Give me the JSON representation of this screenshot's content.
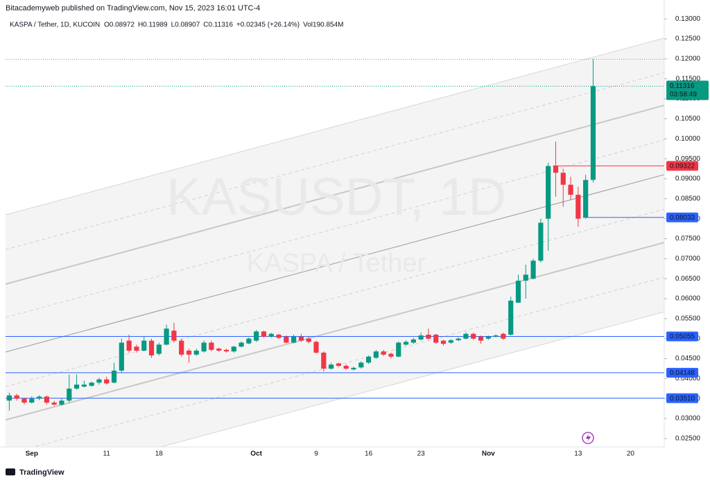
{
  "header": {
    "byline": "Bitacademyweb published on TradingView.com, Nov 15, 2023 16:01 UTC-4",
    "footer": "TradingView"
  },
  "chart_data": {
    "type": "candlestick",
    "title": "KASPA / Tether, 1D, KUCOIN",
    "legend_values": [
      "O0.08972",
      "H0.11989",
      "L0.08907",
      "C0.11316",
      "+0.02345 (+26.14%)",
      "Vol190.854M"
    ],
    "watermark": [
      "KASUSDT, 1D",
      "KASPA / Tether"
    ],
    "up_color": "#089981",
    "down_color": "#f23645",
    "categories": [
      null,
      null,
      null,
      "Sep",
      null,
      null,
      null,
      null,
      null,
      null,
      null,
      null,
      null,
      "11",
      null,
      null,
      null,
      null,
      null,
      null,
      "18",
      null,
      null,
      null,
      null,
      null,
      null,
      null,
      null,
      null,
      null,
      null,
      null,
      "Oct",
      null,
      null,
      null,
      null,
      null,
      null,
      null,
      "9",
      null,
      null,
      null,
      null,
      null,
      null,
      "16",
      null,
      null,
      null,
      null,
      null,
      null,
      "23",
      null,
      null,
      null,
      null,
      null,
      null,
      null,
      null,
      "Nov",
      null,
      null,
      null,
      null,
      null,
      null,
      null,
      null,
      null,
      null,
      null,
      "13",
      null,
      null,
      null,
      null,
      null,
      null,
      "20",
      null,
      null,
      null,
      null
    ],
    "open": [
      0.0345,
      0.0358,
      0.035,
      0.034,
      0.035,
      0.0355,
      0.034,
      0.0335,
      0.0345,
      0.0375,
      0.038,
      0.0382,
      0.039,
      0.0398,
      0.039,
      0.042,
      0.0495,
      0.048,
      0.047,
      0.0495,
      0.0462,
      0.0485,
      0.052,
      0.0495,
      0.047,
      0.046,
      0.0468,
      0.049,
      0.0475,
      0.0472,
      0.0468,
      0.048,
      0.0488,
      0.0495,
      0.0518,
      0.0505,
      0.051,
      0.0505,
      0.049,
      0.0505,
      0.05,
      0.0492,
      0.0465,
      0.0425,
      0.0438,
      0.0432,
      0.0423,
      0.0428,
      0.044,
      0.0452,
      0.0468,
      0.0462,
      0.0455,
      0.0485,
      0.049,
      0.0498,
      0.051,
      0.051,
      0.0495,
      0.049,
      0.0496,
      0.05,
      0.0512,
      0.0505,
      0.05,
      0.0505,
      0.0512,
      0.051,
      0.059,
      0.0645,
      0.065,
      0.0695,
      0.08,
      0.0932,
      0.0915,
      0.0885,
      0.086,
      0.0803,
      0.08972,
      null,
      null,
      null,
      null,
      null,
      null,
      null,
      null,
      null
    ],
    "high": [
      0.0365,
      0.0362,
      0.0352,
      0.0356,
      0.0358,
      0.0358,
      0.0345,
      0.035,
      0.041,
      0.041,
      0.0395,
      0.0392,
      0.0402,
      0.0405,
      0.044,
      0.05,
      0.051,
      0.0485,
      0.0505,
      0.05,
      0.049,
      0.0535,
      0.054,
      0.05,
      0.0475,
      0.0475,
      0.0495,
      0.0495,
      0.0478,
      0.0475,
      0.0482,
      0.0493,
      0.0503,
      0.0522,
      0.052,
      0.0515,
      0.0512,
      0.0508,
      0.051,
      0.0512,
      0.0505,
      0.0495,
      0.0468,
      0.044,
      0.044,
      0.0436,
      0.043,
      0.0443,
      0.0458,
      0.0472,
      0.0472,
      0.0465,
      0.0493,
      0.0496,
      0.0502,
      0.0515,
      0.0525,
      0.0512,
      0.0497,
      0.0499,
      0.0503,
      0.0516,
      0.0515,
      0.0508,
      0.0508,
      0.0511,
      0.0515,
      0.0605,
      0.066,
      0.0685,
      0.07,
      0.08,
      0.094,
      0.0993,
      0.0925,
      0.0905,
      0.088,
      0.091,
      0.11989,
      null,
      null,
      null,
      null,
      null,
      null,
      null,
      null,
      null
    ],
    "low": [
      0.032,
      0.0345,
      0.0335,
      0.0338,
      0.0346,
      0.0335,
      0.0332,
      0.0332,
      0.034,
      0.0372,
      0.0378,
      0.038,
      0.0385,
      0.0385,
      0.0388,
      0.0415,
      0.0465,
      0.0465,
      0.0468,
      0.0452,
      0.0458,
      0.0483,
      0.049,
      0.0455,
      0.044,
      0.0457,
      0.0465,
      0.0468,
      0.0467,
      0.0465,
      0.0465,
      0.0478,
      0.0486,
      0.0492,
      0.0502,
      0.0502,
      0.0499,
      0.0488,
      0.0488,
      0.0492,
      0.0488,
      0.0462,
      0.0418,
      0.0422,
      0.0429,
      0.0422,
      0.042,
      0.0425,
      0.0437,
      0.045,
      0.0457,
      0.045,
      0.0453,
      0.0482,
      0.0487,
      0.0495,
      0.0497,
      0.0487,
      0.0483,
      0.0487,
      0.0494,
      0.0498,
      0.0497,
      0.0487,
      0.0497,
      0.0503,
      0.0497,
      0.0508,
      0.06,
      0.06,
      0.0648,
      0.069,
      0.072,
      0.0855,
      0.083,
      0.0848,
      0.078,
      0.08,
      0.08907,
      null,
      null,
      null,
      null,
      null,
      null,
      null,
      null,
      null
    ],
    "close": [
      0.0358,
      0.035,
      0.034,
      0.035,
      0.0355,
      0.034,
      0.0335,
      0.0345,
      0.0375,
      0.0385,
      0.0385,
      0.039,
      0.0398,
      0.0388,
      0.042,
      0.049,
      0.047,
      0.047,
      0.0495,
      0.0458,
      0.0485,
      0.0525,
      0.0495,
      0.046,
      0.046,
      0.047,
      0.049,
      0.0472,
      0.047,
      0.0468,
      0.048,
      0.049,
      0.05,
      0.0518,
      0.0505,
      0.0512,
      0.0502,
      0.049,
      0.0505,
      0.0495,
      0.0492,
      0.0465,
      0.0425,
      0.0435,
      0.0432,
      0.0425,
      0.0427,
      0.044,
      0.0455,
      0.0468,
      0.046,
      0.0455,
      0.049,
      0.0492,
      0.0498,
      0.0508,
      0.05,
      0.049,
      0.0487,
      0.0496,
      0.05,
      0.0512,
      0.05,
      0.0495,
      0.0505,
      0.0508,
      0.05,
      0.0595,
      0.0645,
      0.066,
      0.0695,
      0.079,
      0.0932,
      0.0915,
      0.0885,
      0.086,
      0.08,
      0.0897,
      0.11316,
      null,
      null,
      null,
      null,
      null,
      null,
      null,
      null,
      null
    ],
    "last_price": {
      "value": 0.11316,
      "label": "0.11316",
      "countdown": "03:58:49",
      "color": "#089981"
    },
    "levels": [
      {
        "value": 0.09322,
        "label": "0.09322",
        "color": "#f23645"
      },
      {
        "value": 0.08033,
        "label": "0.08033",
        "color": "#2962ff"
      },
      {
        "value": 0.05055,
        "label": "0.05055",
        "color": "#2962ff"
      },
      {
        "value": 0.04148,
        "label": "0.04148",
        "color": "#2962ff"
      },
      {
        "value": 0.0351,
        "label": "0.03510",
        "color": "#2962ff"
      }
    ],
    "ylim": [
      0.0229,
      0.1316
    ],
    "yticks": [
      {
        "value": 0.025,
        "label": "0.02500"
      },
      {
        "value": 0.03,
        "label": "0.03000"
      },
      {
        "value": 0.035,
        "label": "0.03500"
      },
      {
        "value": 0.04,
        "label": "0.04000"
      },
      {
        "value": 0.045,
        "label": "0.04500"
      },
      {
        "value": 0.05,
        "label": "0.05000"
      },
      {
        "value": 0.055,
        "label": "0.05500"
      },
      {
        "value": 0.06,
        "label": "0.06000"
      },
      {
        "value": 0.065,
        "label": "0.06500"
      },
      {
        "value": 0.07,
        "label": "0.07000"
      },
      {
        "value": 0.075,
        "label": "0.07500"
      },
      {
        "value": 0.08,
        "label": "0.08000"
      },
      {
        "value": 0.085,
        "label": "0.08500"
      },
      {
        "value": 0.09,
        "label": "0.09000"
      },
      {
        "value": 0.095,
        "label": "0.09500"
      },
      {
        "value": 0.1,
        "label": "0.10000"
      },
      {
        "value": 0.105,
        "label": "0.10500"
      },
      {
        "value": 0.11,
        "label": "0.11000"
      },
      {
        "value": 0.115,
        "label": "0.11500"
      },
      {
        "value": 0.12,
        "label": "0.12000"
      },
      {
        "value": 0.125,
        "label": "0.12500"
      },
      {
        "value": 0.13,
        "label": "0.13000"
      }
    ]
  }
}
